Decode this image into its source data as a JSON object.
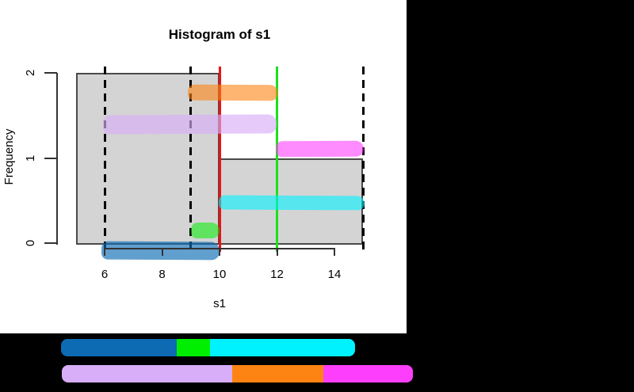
{
  "chart_data": {
    "type": "bar",
    "title": "Histogram of s1",
    "xlabel": "s1",
    "ylabel": "Frequency",
    "x_ticks": [
      6,
      8,
      10,
      12,
      14
    ],
    "y_ticks": [
      0,
      1,
      2
    ],
    "xlim": [
      4.6,
      15.4
    ],
    "ylim": [
      0,
      2
    ],
    "grid": false,
    "bars": [
      {
        "bin_from": 5,
        "bin_to": 10,
        "frequency": 2
      },
      {
        "bin_from": 10,
        "bin_to": 15,
        "frequency": 1
      }
    ],
    "bar_fill": "#d4d4d4",
    "bar_border": "#4a4a4a",
    "vlines": [
      {
        "x": 6,
        "style": "dashed",
        "color": "#000000"
      },
      {
        "x": 9,
        "style": "dashed",
        "color": "#000000"
      },
      {
        "x": 15,
        "style": "dashed",
        "color": "#000000"
      },
      {
        "x": 10,
        "style": "solid",
        "color": "#ee1111"
      },
      {
        "x": 12,
        "style": "solid",
        "color": "#1de01d"
      }
    ],
    "highlights": [
      {
        "name": "blue",
        "color": "#0c6bb3",
        "alpha": 0.65,
        "x_from": 5.9,
        "x_to": 10.0,
        "y_from": -0.19,
        "y_to": 0.02
      },
      {
        "name": "green",
        "color": "#00ee00",
        "alpha": 0.55,
        "x_from": 9.0,
        "x_to": 10.0,
        "y_from": 0.05,
        "y_to": 0.24
      },
      {
        "name": "cyan",
        "color": "#00f2ff",
        "alpha": 0.6,
        "x_from": 9.97,
        "x_to": 15.05,
        "y_from": 0.39,
        "y_to": 0.56
      },
      {
        "name": "violet",
        "color": "#d8aef8",
        "alpha": 0.65,
        "x_from": 5.95,
        "x_to": 12.0,
        "y_from": 1.29,
        "y_to": 1.51
      },
      {
        "name": "orange",
        "color": "#fd8412",
        "alpha": 0.6,
        "x_from": 8.9,
        "x_to": 12.05,
        "y_from": 1.67,
        "y_to": 1.86
      },
      {
        "name": "magenta",
        "color": "#fd3ffd",
        "alpha": 0.6,
        "x_from": 11.95,
        "x_to": 15.0,
        "y_from": 1.01,
        "y_to": 1.2
      }
    ],
    "legend_position": "bottom"
  },
  "legend": {
    "rows": [
      {
        "segments": [
          {
            "name": "blue",
            "color": "#0c6bb3",
            "x_from": 77,
            "x_to": 223
          },
          {
            "name": "green",
            "color": "#00ee00",
            "x_from": 223,
            "x_to": 265
          },
          {
            "name": "cyan",
            "color": "#00f2ff",
            "x_from": 265,
            "x_to": 448
          }
        ]
      },
      {
        "segments": [
          {
            "name": "violet",
            "color": "#d8aef8",
            "x_from": 78,
            "x_to": 293
          },
          {
            "name": "orange",
            "color": "#fd8412",
            "x_from": 293,
            "x_to": 408
          },
          {
            "name": "magenta",
            "color": "#fd3ffd",
            "x_from": 408,
            "x_to": 521
          }
        ]
      }
    ]
  },
  "colors": {
    "page_background": "#000000",
    "plot_background": "#ffffff",
    "axis": "#333333",
    "text": "#000000"
  }
}
